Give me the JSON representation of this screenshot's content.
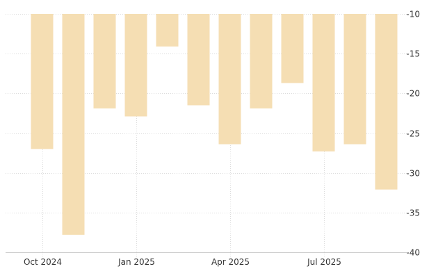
{
  "chart_data": {
    "type": "bar",
    "title": "",
    "xlabel": "",
    "ylabel": "",
    "y_axis_position": "right",
    "ylim": [
      -40,
      -10
    ],
    "y_ticks": [
      -10,
      -15,
      -20,
      -25,
      -30,
      -35,
      -40
    ],
    "x_tick_labels": [
      "Oct 2024",
      "Jan 2025",
      "Apr 2025",
      "Jul 2025"
    ],
    "x_tick_categories": [
      "2024-10",
      "2025-01",
      "2025-04",
      "2025-07"
    ],
    "categories": [
      "2024-10",
      "2024-11",
      "2024-12",
      "2025-01",
      "2025-02",
      "2025-03",
      "2025-04",
      "2025-05",
      "2025-06",
      "2025-07",
      "2025-08",
      "2025-09"
    ],
    "values": [
      -27.0,
      -37.8,
      -21.9,
      -22.9,
      -14.1,
      -21.5,
      -26.4,
      -21.9,
      -18.7,
      -27.3,
      -26.4,
      -32.1
    ],
    "grid": true,
    "colors": {
      "bar": "#f5deb3",
      "grid": "#dcdcdc",
      "text": "#333333"
    }
  }
}
